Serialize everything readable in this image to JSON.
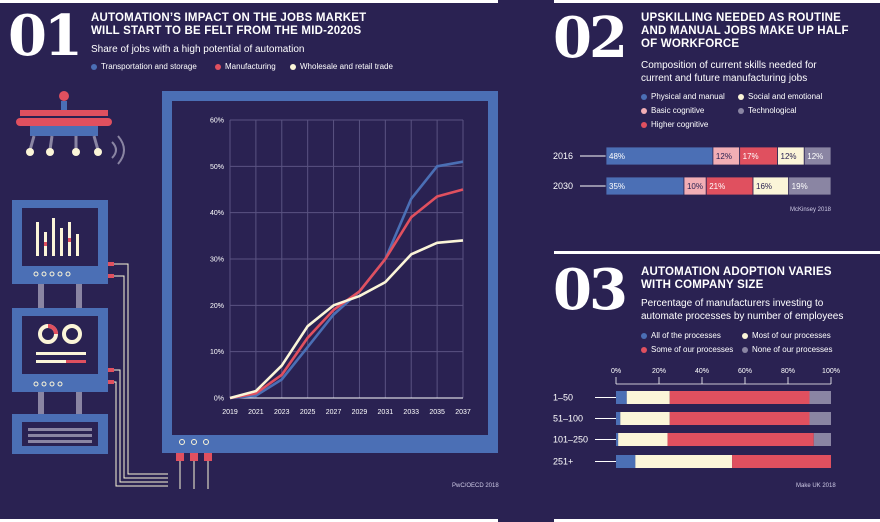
{
  "colors": {
    "bg": "#2a2252",
    "transport": "#4b6fb5",
    "manufacturing": "#e0505f",
    "wholesale": "#fbf5d8",
    "physical": "#4b6fb5",
    "social": "#fbf5d8",
    "basic": "#f2aeb5",
    "technological": "#8a85a3",
    "higher": "#e0505f",
    "all": "#4b6fb5",
    "most": "#fbf5d8",
    "some": "#e0505f",
    "none": "#8a85a3"
  },
  "section1": {
    "number": "01",
    "heading_line1": "AUTOMATION’S IMPACT ON THE JOBS MARKET",
    "heading_line2": "WILL START TO BE FELT FROM THE MID-2020S",
    "subtitle": "Share of jobs with a high potential of automation",
    "source": "PwC/OECD 2018"
  },
  "section2": {
    "number": "02",
    "heading_line1": "UPSKILLING NEEDED AS ROUTINE",
    "heading_line2": "AND MANUAL JOBS MAKE UP HALF",
    "heading_line3": "OF WORKFORCE",
    "subtitle_line1": "Composition of current skills needed for",
    "subtitle_line2": "current and future manufacturing jobs",
    "source": "McKinsey 2018"
  },
  "section3": {
    "number": "03",
    "heading_line1": "AUTOMATION ADOPTION VARIES",
    "heading_line2": "WITH COMPANY SIZE",
    "subtitle_line1": "Percentage of manufacturers investing to",
    "subtitle_line2": "automate processes by number of employees",
    "source": "Make UK 2018"
  },
  "chart_data": [
    {
      "type": "line",
      "title": "Share of jobs with a high potential of automation",
      "x": [
        "2019",
        "2021",
        "2023",
        "2025",
        "2027",
        "2029",
        "2031",
        "2033",
        "2035",
        "2037"
      ],
      "ylim": [
        0,
        60
      ],
      "yticks": [
        "0%",
        "10%",
        "20%",
        "30%",
        "40%",
        "50%",
        "60%"
      ],
      "grid": true,
      "legend_position": "top",
      "series": [
        {
          "name": "Transportation and storage",
          "values": [
            0,
            0.5,
            4,
            11,
            18,
            23,
            30,
            43,
            50,
            51
          ]
        },
        {
          "name": "Manufacturing",
          "values": [
            0,
            1,
            5,
            13,
            19,
            23,
            30,
            39,
            43.5,
            45
          ]
        },
        {
          "name": "Wholesale and retail trade",
          "values": [
            0,
            1.5,
            7,
            15.5,
            20,
            22,
            25,
            31,
            33.5,
            34
          ]
        }
      ]
    },
    {
      "type": "bar",
      "stacked": true,
      "orientation": "horizontal",
      "title": "Composition of current skills needed for current and future manufacturing jobs",
      "legend_position": "top",
      "categories": [
        "2016",
        "2030"
      ],
      "legend": [
        "Physical and manual",
        "Social and emotional",
        "Basic cognitive",
        "Technological",
        "Higher cognitive"
      ],
      "series": [
        {
          "name": "Physical and manual",
          "values": [
            48,
            35
          ],
          "labels": [
            "48%",
            "35%"
          ]
        },
        {
          "name": "Basic cognitive",
          "values": [
            12,
            10
          ],
          "labels": [
            "12%",
            "10%"
          ]
        },
        {
          "name": "Higher cognitive",
          "values": [
            17,
            21
          ],
          "labels": [
            "17%",
            "21%"
          ]
        },
        {
          "name": "Social and emotional",
          "values": [
            12,
            16
          ],
          "labels": [
            "12%",
            "16%"
          ]
        },
        {
          "name": "Technological",
          "values": [
            12,
            19
          ],
          "labels": [
            "12%",
            "19%"
          ]
        }
      ]
    },
    {
      "type": "bar",
      "stacked": true,
      "orientation": "horizontal",
      "title": "Percentage of manufacturers investing to automate processes by number of employees",
      "legend_position": "top",
      "categories": [
        "1–50",
        "51–100",
        "101–250",
        "251+"
      ],
      "xlim": [
        0,
        100
      ],
      "xticks": [
        "0%",
        "20%",
        "40%",
        "60%",
        "80%",
        "100%"
      ],
      "legend": [
        "All of the processes",
        "Most of our processes",
        "Some of our processes",
        "None of our processes"
      ],
      "series": [
        {
          "name": "All of the processes",
          "values": [
            5,
            2,
            1,
            9
          ]
        },
        {
          "name": "Most of our processes",
          "values": [
            20,
            23,
            23,
            45
          ]
        },
        {
          "name": "Some of our processes",
          "values": [
            65,
            65,
            68,
            46
          ]
        },
        {
          "name": "None of our processes",
          "values": [
            10,
            10,
            8,
            0
          ]
        }
      ]
    }
  ]
}
